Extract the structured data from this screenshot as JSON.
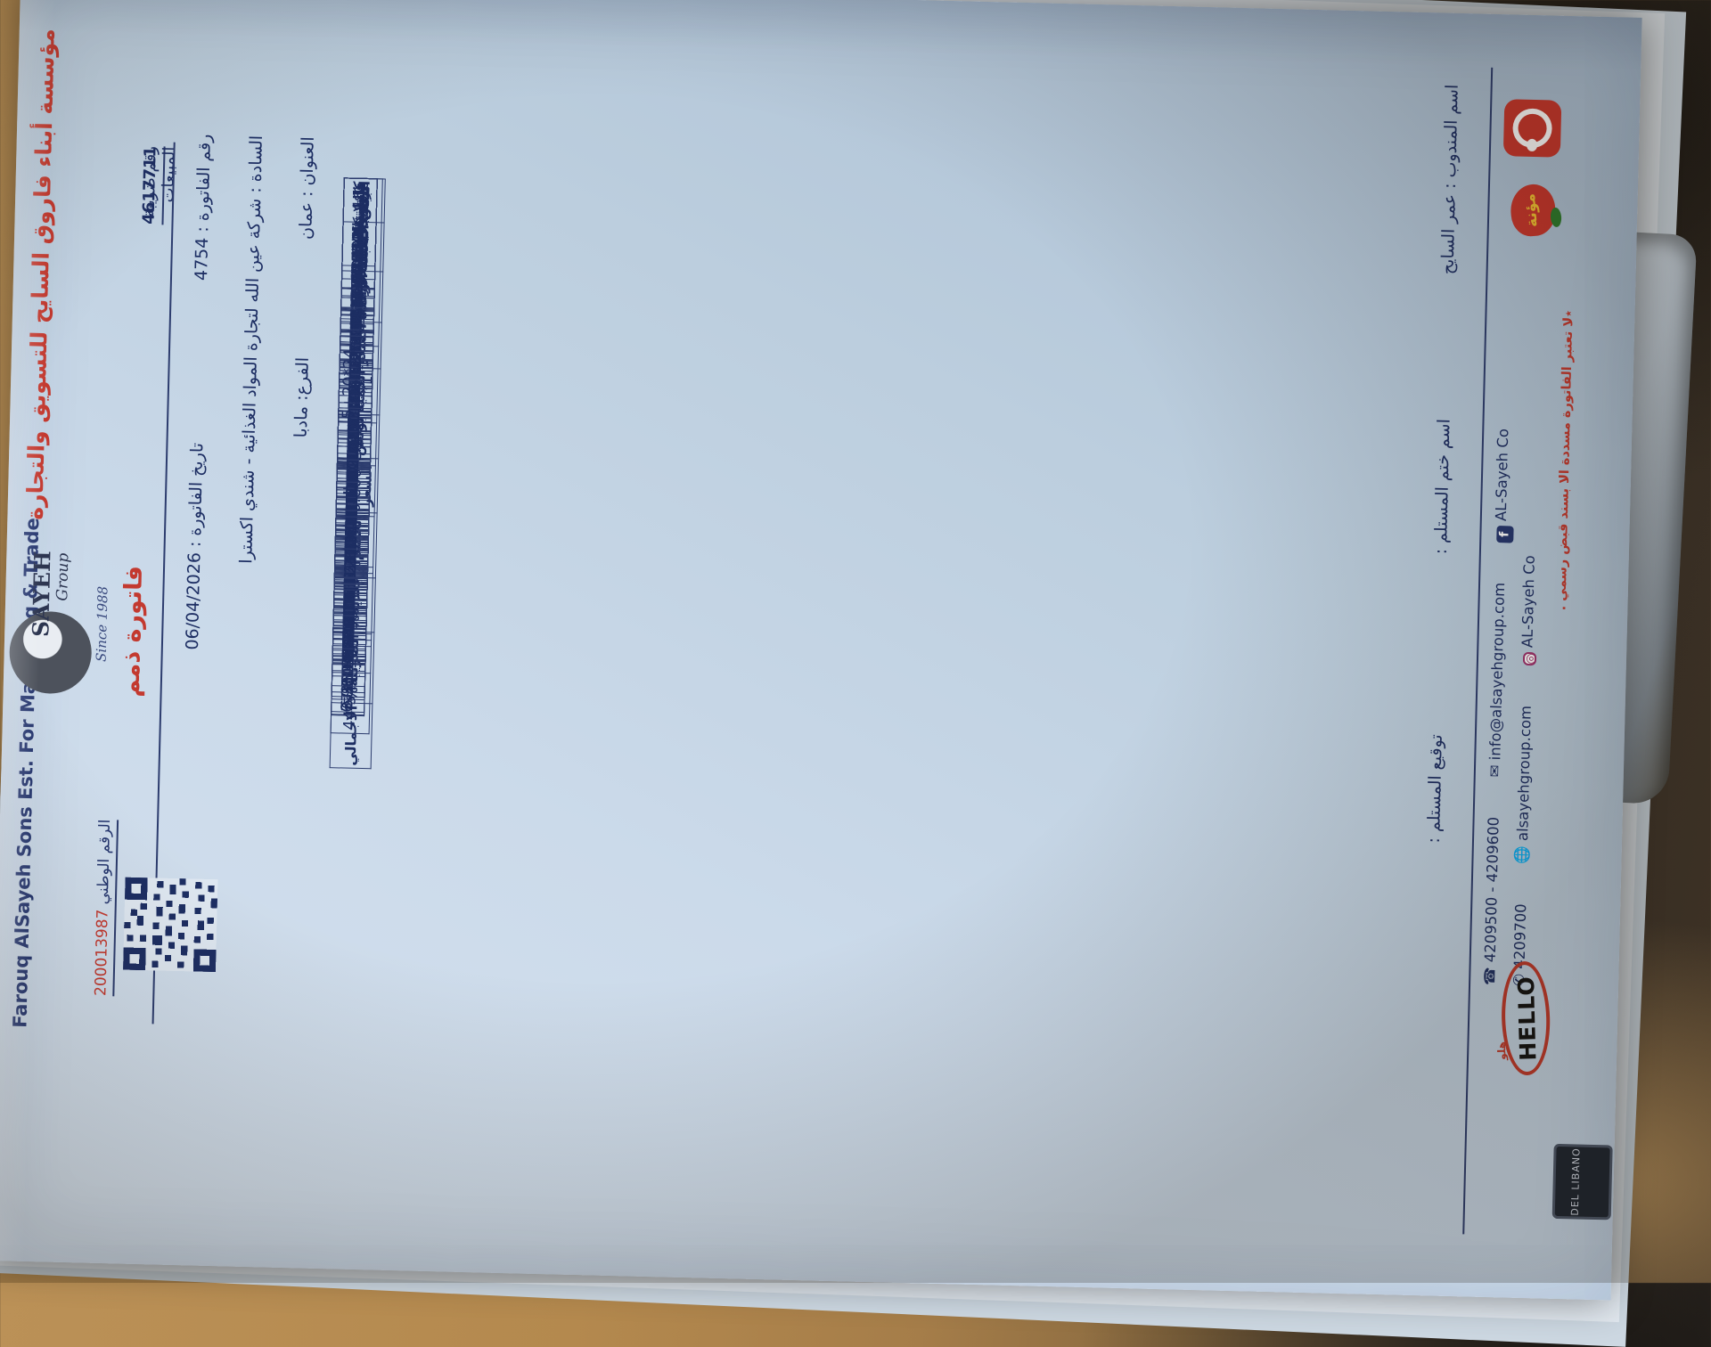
{
  "colors": {
    "paper": "#c8d8ea",
    "ink": "#1d2e63",
    "red": "#c3392f",
    "cardboard": "#b4894e",
    "shadow": "#393129"
  },
  "header": {
    "company_ar": "مؤسسة أبناء فاروق السايح للتسويق والتجارة",
    "company_en": "Farouq AlSayeh Sons  Est. For Marketing & Trade",
    "logo_main": "SAYEH",
    "logo_sub": "Group",
    "since": "Since 1988",
    "invoice_type": "فاتورة ذمم",
    "tax_reg_label": "رقم ضريبة المبيعات",
    "tax_reg_no": "4617711",
    "invoice_no_label": "رقم الفاتورة :",
    "invoice_no": "4754",
    "date_label": "تاريخ الفاتورة :",
    "date": "06/04/2026",
    "customer_label": "السادة",
    "customer": ": شركة عين الله لتجارة المواد الغذائية - شندي اكسترا",
    "address_label": "العنوان",
    "address": ": عمان",
    "branch_label": "الفرع:",
    "branch": "مادبا",
    "national_label": "الرقم الوطني",
    "national_no": "200013987"
  },
  "table": {
    "columns": [
      {
        "key": "name",
        "label": "البيان"
      },
      {
        "key": "pack",
        "label": "التعبئة"
      },
      {
        "key": "unit",
        "label": "الوحدة"
      },
      {
        "key": "price",
        "label": "السعر"
      },
      {
        "key": "qty",
        "label": "الكمية"
      },
      {
        "key": "bonus",
        "label": "بونص"
      },
      {
        "key": "total_price",
        "label": "اجمالي السعر"
      },
      {
        "key": "disc",
        "label": "الخصم%"
      },
      {
        "key": "after_disc",
        "label": "بعدية%"
      },
      {
        "key": "tax",
        "label": "الضريبة%"
      },
      {
        "key": "total",
        "label": "الاجمالي"
      }
    ],
    "items": [
      {
        "name": "كريم كراميل",
        "pack": "12*12*1",
        "unit": "حبة",
        "price": "0.400",
        "qty": "12.00",
        "total_price": "4.800",
        "tax": "16",
        "total": "5.568"
      },
      {
        "name": "جلي بقري موز",
        "pack": "12*12*1",
        "unit": "حبة",
        "price": "0.355",
        "qty": "12.00",
        "total_price": "4.260",
        "tax": "16",
        "total": "4.942"
      },
      {
        "name": "براوني شوكولاتة الحليب 500",
        "pack": "12*1",
        "unit": "حبة",
        "price": "2.000",
        "qty": "12.00",
        "total_price": "24.000",
        "tax": "16",
        "total": "27.840"
      },
      {
        "name": "كسترد علب 300 غم",
        "pack": "24*1",
        "unit": "حبة",
        "price": "1.250",
        "qty": "24.00",
        "total_price": "30.000",
        "tax": "16",
        "total": "34.800"
      },
      {
        "name": "فانيلا علب 85 غم",
        "pack": "48*1",
        "unit": "حبة",
        "price": "0.690",
        "qty": "48.00",
        "total_price": "33.120",
        "tax": "16",
        "total": "38.419"
      },
      {
        "name": "فانيلا علب 85 غم",
        "pack": "48*1",
        "unit": "حبة",
        "price": "0.690",
        "qty": "48.00",
        "total_price": "33.120",
        "tax": "16",
        "total": "38.419"
      },
      {
        "name": "بكينغ باودر علب 110 غم",
        "pack": "12*24*1",
        "unit": "باكيت",
        "price": "0.456",
        "qty": "4.00",
        "total_price": "1.824",
        "tax": "16",
        "total": "2.116"
      },
      {
        "name": "فانيلا باكيت صغير",
        "pack": "12*12*1",
        "unit": "حبة",
        "price": "0.500",
        "qty": "12.00",
        "total_price": "6.000",
        "tax": "16",
        "total": "6.960"
      },
      {
        "name": "شوربة دجاج 60 غم",
        "pack": "12*12*1",
        "unit": "حبة",
        "price": "0.500",
        "qty": "12.00",
        "total_price": "6.000",
        "tax": "16",
        "total": "6.960"
      },
      {
        "name": "شوربة خضار 56 غم",
        "pack": "12*12*1",
        "unit": "حبة",
        "price": "0.500",
        "qty": "12.00",
        "total_price": "6.000",
        "tax": "16",
        "total": "6.960"
      },
      {
        "name": "شوربة فطر 65 غم",
        "pack": "12*12*1",
        "unit": "حبة",
        "price": "0.500",
        "qty": "12.00",
        "total_price": "6.000",
        "tax": "16",
        "total": "6.960"
      },
      {
        "name": "شوربة كاري 56 غم",
        "pack": "12*12*1",
        "unit": "حبة",
        "price": "0.500",
        "qty": "12.00",
        "total_price": "6.000",
        "tax": "16",
        "total": "6.960"
      },
      {
        "name": "شوربة كريمة الدجاج 70 غم",
        "pack": "12*12*1",
        "unit": "حبة",
        "price": "0.500",
        "qty": "12.00",
        "total_price": "6.000",
        "tax": "16",
        "total": "6.960"
      },
      {
        "name": "شوربة كريمة الخضار 65 غم",
        "pack": "12*12*1",
        "unit": "حبة",
        "price": "0.500",
        "qty": "12.00",
        "total_price": "6.000",
        "tax": "16",
        "total": "6.960"
      },
      {
        "name": "خلطة البشاميل 80 غم",
        "pack": "12*12*1",
        "unit": "حبة",
        "price": "2.210",
        "qty": "12.00",
        "total_price": "26.520",
        "tax": "16",
        "total": "30.763"
      },
      {
        "name": "كاكاو علب 100 غم",
        "pack": "24*1",
        "unit": "حبة",
        "price": "1.175",
        "qty": "24.00",
        "total_price": "28.200",
        "tax": "16",
        "total": "32.712"
      },
      {
        "name": "مرقة باكيت صغير+25%",
        "pack": "5+20*24 *1",
        "unit": "باكيت",
        "price": "0.800",
        "qty": "48.00",
        "total_price": "38.400",
        "tax": "16",
        "total": "44.544"
      },
      {
        "name": "شوربة دجاج عرض 1+2",
        "pack": "48*1",
        "unit": "حبة",
        "price": "0.585",
        "qty": "120.00",
        "total_price": "70.200",
        "tax": "16",
        "total": "81.432"
      },
      {
        "name": "كاتشب 340 غم",
        "pack": "12*1",
        "unit": "حبة",
        "price": "0.920",
        "qty": "60.00",
        "total_price": "55.200",
        "tax": "16",
        "total": "64.032"
      },
      {
        "name": "كاتشب 570 غم",
        "pack": "12*1",
        "unit": "حبة",
        "price": "0.920",
        "qty": "24.00",
        "total_price": "22.080",
        "tax": "16",
        "total": "25.613"
      },
      {
        "name": "كاتشب حار 570 غم",
        "pack": "12*1",
        "unit": "حبة",
        "price": "1.000",
        "qty": "12.00",
        "total_price": "12.000",
        "tax": "16",
        "total": "13.920"
      },
      {
        "name": "كاتشب 700 غم",
        "pack": "12*1",
        "unit": "حبة",
        "price": "1.335",
        "qty": "48.00",
        "total_price": "64.080",
        "tax": "16",
        "total": "74.333"
      },
      {
        "name": "كاتشب 910 غم",
        "pack": "12*1",
        "unit": "حبة",
        "price": "0.920",
        "qty": "12.00",
        "total_price": "11.040",
        "tax": "16",
        "total": "12.806"
      },
      {
        "name": "مايونيز 300 مل",
        "pack": "12*1",
        "unit": "حبة",
        "price": "1.500",
        "qty": "36.00",
        "total_price": "54.000",
        "tax": "16",
        "total": "62.640"
      },
      {
        "name": "مايونيز 500 مل + 25%",
        "pack": "12*1",
        "unit": "حبة",
        "price": "1.835",
        "qty": "24.00",
        "total_price": "44.040",
        "tax": "16",
        "total": "51.086"
      },
      {
        "name": "مايونيز 820 مل",
        "pack": "12*1",
        "unit": "حبة",
        "price": "2.170",
        "qty": "12.00",
        "total_price": "26.040",
        "tax": "16",
        "total": "30.206"
      },
      {
        "name": "مايونيز جولد 500 مل",
        "pack": "12*1",
        "unit": "حبة",
        "price": "2.170",
        "qty": "24.00",
        "total_price": "52.080",
        "tax": "16",
        "total": "60.413"
      },
      {
        "name": "مايونشات 500 مل",
        "pack": "12*1",
        "unit": "حبة",
        "price": "2.170",
        "qty": "12.00",
        "total_price": "26.040",
        "tax": "16",
        "total": "30.206"
      },
      {
        "name": "باربكيو صوص 600 غم",
        "pack": "12*1",
        "unit": "حبة",
        "price": "2.170",
        "qty": "12.00",
        "total_price": "26.040",
        "tax": "16",
        "total": "30.206"
      },
      {
        "name": "صلصة الرانش 500 مل",
        "pack": "12*1",
        "unit": "حبة",
        "price": "2.170",
        "qty": "12.00",
        "total_price": "26.040",
        "tax": "16",
        "total": "30.206"
      }
    ]
  },
  "footer": {
    "rep_label": "اسم المندوب :",
    "rep_name": "عمر السايح",
    "stamp_label": "اسم ختم المستلم :",
    "sign_label": "توقيع المستلم :",
    "phone1": "4209500 - 4209600",
    "fax": "4209700",
    "email": "info@alsayehgroup.com",
    "website": "alsayehgroup.com",
    "facebook": "AL-Sayeh Co",
    "instagram": "AL-Sayeh Co",
    "fb_glyph": "f",
    "note": "٭لا تعتبر الفاتورة مسددة الا بسند قبض رسمي .",
    "mouneh": "مؤنة",
    "hello_en": "HELLO",
    "hello_ar": "هلو",
    "del_libano": "DEL LIBANO"
  }
}
